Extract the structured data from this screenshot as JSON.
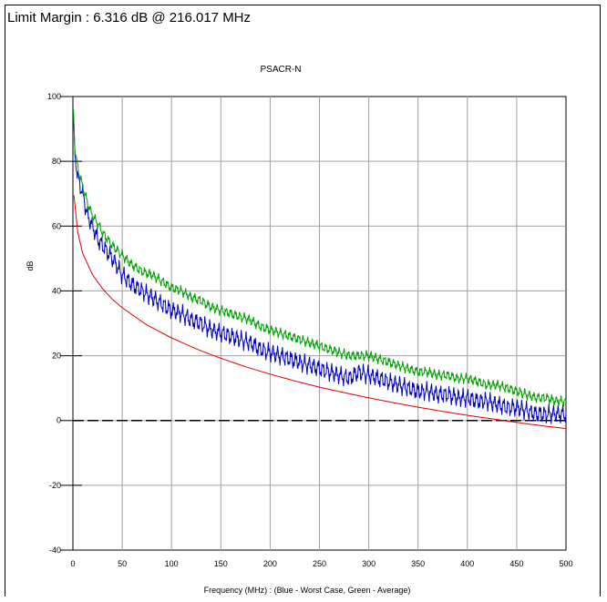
{
  "header": {
    "limit_margin_text": "Limit Margin : 6.316 dB @ 216.017 MHz"
  },
  "chart_data": {
    "type": "line",
    "title": "PSACR-N",
    "xlabel": "Frequency (MHz) : (Blue - Worst Case, Green - Average)",
    "ylabel": "dB",
    "xlim": [
      0,
      500
    ],
    "ylim": [
      -40,
      100
    ],
    "xticks": [
      0,
      50,
      100,
      150,
      200,
      250,
      300,
      350,
      400,
      450,
      500
    ],
    "yticks": [
      -40,
      -20,
      0,
      20,
      40,
      60,
      80,
      100
    ],
    "grid": true,
    "reference_line": {
      "y": 0,
      "style": "dashed",
      "color": "#000000"
    },
    "series": [
      {
        "color": "#0000c0",
        "x": [
          0.5,
          2,
          5,
          10,
          15,
          20,
          25,
          30,
          40,
          50,
          60,
          70,
          80,
          90,
          100,
          110,
          120,
          130,
          140,
          150,
          160,
          170,
          180,
          190,
          200,
          210,
          220,
          230,
          240,
          250,
          260,
          270,
          280,
          290,
          300,
          310,
          320,
          330,
          340,
          350,
          360,
          370,
          380,
          390,
          400,
          410,
          420,
          430,
          440,
          450,
          460,
          470,
          480,
          490,
          500
        ],
        "y": [
          96,
          82,
          75,
          70,
          63,
          60,
          56,
          54,
          50,
          45,
          42,
          40,
          38,
          36,
          34,
          33,
          31,
          30,
          28,
          27,
          26,
          25,
          24,
          22,
          21,
          20,
          19,
          18,
          17,
          16,
          15,
          14,
          13,
          15,
          14,
          13,
          12,
          11,
          10,
          9,
          9,
          8,
          8,
          7,
          7,
          6,
          6,
          5,
          4,
          4,
          3,
          2,
          2,
          2,
          2
        ]
      },
      {
        "color": "#00a000",
        "x": [
          0.5,
          2,
          5,
          10,
          15,
          20,
          25,
          30,
          40,
          50,
          60,
          70,
          80,
          90,
          100,
          110,
          120,
          130,
          140,
          150,
          160,
          170,
          180,
          190,
          200,
          210,
          220,
          230,
          240,
          250,
          260,
          270,
          280,
          290,
          300,
          310,
          320,
          330,
          340,
          350,
          360,
          370,
          380,
          390,
          400,
          410,
          420,
          430,
          440,
          450,
          460,
          470,
          480,
          490,
          500
        ],
        "y": [
          96,
          83,
          78,
          72,
          67,
          63,
          61,
          58,
          54,
          51,
          48,
          46,
          45,
          43,
          41,
          40,
          38,
          37,
          35,
          34,
          33,
          32,
          31,
          29,
          28,
          27,
          26,
          25,
          24,
          23,
          22,
          21,
          20,
          20,
          20,
          19,
          18,
          17,
          16,
          15,
          15,
          14,
          14,
          13,
          13,
          12,
          11,
          11,
          10,
          9,
          8,
          7,
          7,
          6,
          6
        ]
      },
      {
        "color": "#e00000",
        "x": [
          1,
          5,
          10,
          20,
          30,
          40,
          50,
          75,
          100,
          125,
          150,
          175,
          200,
          225,
          250,
          275,
          300,
          325,
          350,
          375,
          400,
          425,
          450,
          475,
          500
        ],
        "y": [
          69.5,
          58,
          51.5,
          45,
          40.7,
          37.4,
          34.8,
          29.5,
          25.5,
          22.1,
          19.2,
          16.6,
          14.3,
          12.2,
          10.3,
          8.6,
          7,
          5.5,
          4.1,
          2.8,
          1.6,
          0.5,
          -0.6,
          -1.6,
          -2.5
        ]
      }
    ]
  }
}
